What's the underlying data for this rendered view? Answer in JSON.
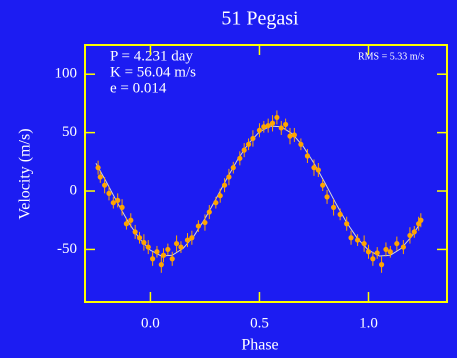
{
  "chart_data": {
    "type": "scatter",
    "title": "51 Pegasi",
    "x_label": "Phase",
    "y_label": "Velocity  (m/s)",
    "annotations": [
      "P = 4.231 day",
      "K = 56.04 m/s",
      "e = 0.014"
    ],
    "rms_label": "RMS = 5.33 m/s",
    "xlim": [
      -0.3,
      1.36
    ],
    "ylim": [
      -95,
      125
    ],
    "xticks": [
      {
        "value": 0,
        "label": "0.0"
      },
      {
        "value": 0.5,
        "label": "0.5"
      },
      {
        "value": 1,
        "label": "1.0"
      }
    ],
    "yticks": [
      -50,
      0,
      50,
      100
    ],
    "color": "#ffa500",
    "frame_color": "#ffff00",
    "background": "#1c1cf2",
    "x": [
      -0.24,
      -0.23,
      -0.21,
      -0.19,
      -0.17,
      -0.15,
      -0.13,
      -0.11,
      -0.09,
      -0.07,
      -0.05,
      -0.03,
      -0.01,
      0.01,
      0.03,
      0.05,
      0.06,
      0.08,
      0.1,
      0.12,
      0.14,
      0.17,
      0.19,
      0.22,
      0.25,
      0.27,
      0.3,
      0.32,
      0.34,
      0.36,
      0.38,
      0.41,
      0.43,
      0.45,
      0.47,
      0.5,
      0.52,
      0.54,
      0.56,
      0.58,
      0.6,
      0.62,
      0.64,
      0.66,
      0.69,
      0.72,
      0.75,
      0.77,
      0.79,
      0.81,
      0.84,
      0.87,
      0.9,
      0.92,
      0.95,
      0.98,
      1.0,
      1.02,
      1.04,
      1.06,
      1.08,
      1.1,
      1.13,
      1.16,
      1.19,
      1.21,
      1.23,
      1.24
    ],
    "values": [
      20,
      12,
      5,
      -2,
      -10,
      -8,
      -14,
      -28,
      -25,
      -35,
      -40,
      -44,
      -48,
      -58,
      -52,
      -63,
      -55,
      -50,
      -58,
      -45,
      -48,
      -42,
      -40,
      -30,
      -27,
      -18,
      -10,
      -4,
      5,
      12,
      20,
      28,
      35,
      40,
      45,
      52,
      55,
      56,
      58,
      63,
      54,
      57,
      47,
      48,
      40,
      30,
      20,
      18,
      5,
      -5,
      -14,
      -20,
      -28,
      -40,
      -42,
      -45,
      -52,
      -58,
      -53,
      -63,
      -50,
      -52,
      -45,
      -48,
      -38,
      -35,
      -28,
      -25
    ],
    "errors": [
      6,
      5,
      7,
      6,
      5,
      6,
      7,
      5,
      6,
      6,
      5,
      7,
      6,
      6,
      5,
      7,
      6,
      5,
      6,
      7,
      5,
      6,
      6,
      5,
      7,
      6,
      5,
      6,
      6,
      7,
      5,
      6,
      6,
      5,
      7,
      6,
      5,
      6,
      7,
      6,
      6,
      5,
      7,
      6,
      5,
      6,
      7,
      6,
      5,
      6,
      7,
      5,
      6,
      6,
      5,
      7,
      6,
      6,
      5,
      7,
      6,
      5,
      6,
      6,
      7,
      5,
      6,
      6
    ],
    "fit": {
      "color": "#d8d8d8",
      "x": [
        -0.25,
        -0.2,
        -0.15,
        -0.1,
        -0.05,
        0,
        0.05,
        0.1,
        0.15,
        0.2,
        0.25,
        0.3,
        0.35,
        0.4,
        0.45,
        0.5,
        0.55,
        0.6,
        0.65,
        0.7,
        0.75,
        0.8,
        0.85,
        0.9,
        0.95,
        1,
        1.05,
        1.1,
        1.15,
        1.2,
        1.25
      ],
      "values": [
        23.8,
        7.0,
        -10.5,
        -27.0,
        -40.8,
        -50.7,
        -55.6,
        -55.0,
        -49.1,
        -38.4,
        -23.8,
        -7.0,
        10.5,
        27.0,
        40.8,
        50.7,
        55.6,
        55.0,
        49.1,
        38.4,
        23.8,
        7.0,
        -10.5,
        -27.0,
        -40.8,
        -50.7,
        -55.6,
        -55.0,
        -49.1,
        -38.4,
        -23.8
      ]
    }
  }
}
